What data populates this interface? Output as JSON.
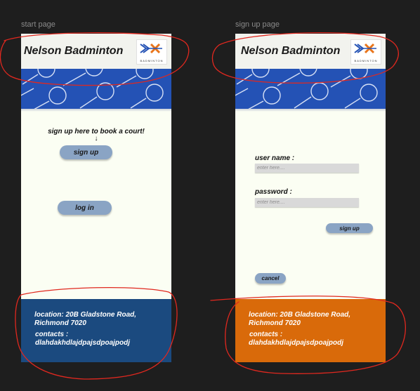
{
  "start_page": {
    "frame_label": "start page",
    "header": {
      "title": "Nelson Badminton",
      "logo_text": "BADMINTON"
    },
    "prompt_text": "sign up here to book a court!",
    "arrow": "↓",
    "signup_label": "sign up",
    "login_label": "log in",
    "footer": {
      "location_line1": "location: 20B Gladstone Road,",
      "location_line2": "Richmond 7020",
      "contacts_label": "contacts :",
      "contacts_value": "dlahdakhdlajdpajsdpoajpodj",
      "color": "#1b4a7f"
    }
  },
  "signup_page": {
    "frame_label": "sign up page",
    "header": {
      "title": "Nelson Badminton",
      "logo_text": "BADMINTON"
    },
    "username_label": "user name :",
    "username_placeholder": "enter here....",
    "password_label": "password :",
    "password_placeholder": "enter here....",
    "signup_label": "sign up",
    "cancel_label": "cancel",
    "footer": {
      "location_line1": "location: 20B Gladstone Road,",
      "location_line2": "Richmond 7020",
      "contacts_label": "contacts :",
      "contacts_value": "dlahdakhdlajdpajsdpoajpodj",
      "color": "#d96a0a"
    }
  },
  "colors": {
    "canvas": "#1e1e1e",
    "frame_bg": "#fbfef3",
    "banner": "#2452b5",
    "button": "#8aa4c4",
    "annotation": "#e0281f"
  }
}
